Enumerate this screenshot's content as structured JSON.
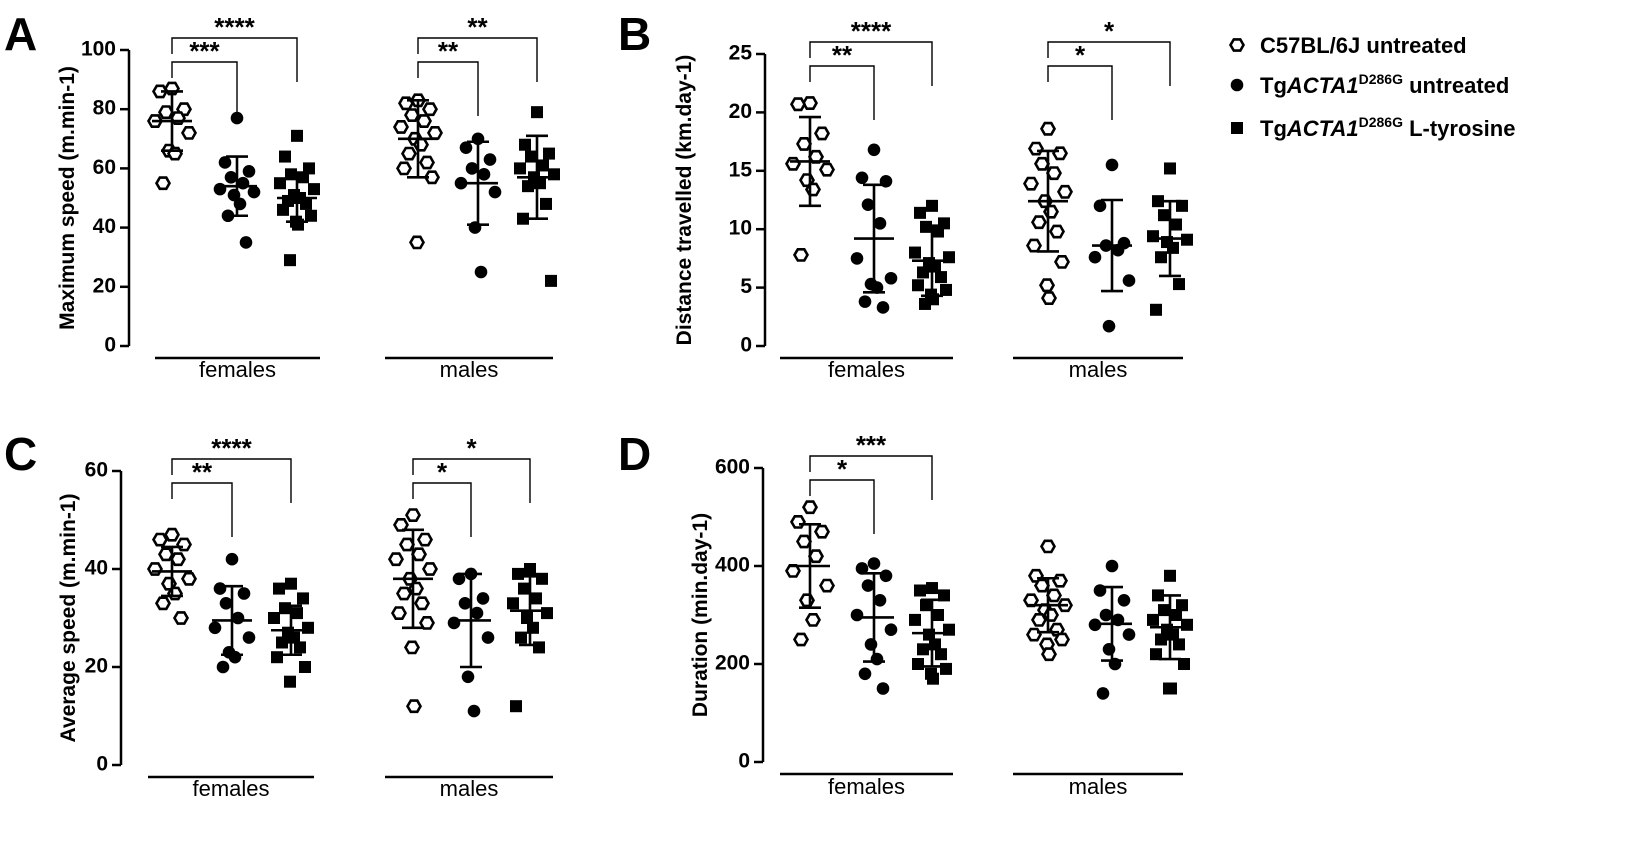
{
  "legend": [
    {
      "marker": "open-hexagon",
      "prefix": "C57BL/6J untreated",
      "italic": "",
      "sup": "",
      "suffix": ""
    },
    {
      "marker": "filled-circle",
      "prefix": "Tg",
      "italic": "ACTA1",
      "sup": "D286G",
      "suffix": " untreated"
    },
    {
      "marker": "filled-square",
      "prefix": "Tg",
      "italic": "ACTA1",
      "sup": "D286G",
      "suffix": " L-tyrosine"
    }
  ],
  "chart_data": [
    {
      "panel": "A",
      "type": "scatter",
      "ylabel": "Maximum speed (m.min-1)",
      "ylim": [
        0,
        100
      ],
      "yticks": [
        0,
        20,
        40,
        60,
        80,
        100
      ],
      "groups": [
        "females",
        "males"
      ],
      "series": [
        {
          "group": "females",
          "marker": "open-hexagon",
          "mean": 76,
          "sd": 10,
          "values": [
            87,
            86,
            80,
            79,
            77,
            76,
            72,
            66,
            65,
            55
          ]
        },
        {
          "group": "females",
          "marker": "filled-circle",
          "mean": 54,
          "sd": 10,
          "values": [
            77,
            62,
            59,
            57,
            55,
            53,
            52,
            51,
            48,
            44,
            35
          ]
        },
        {
          "group": "females",
          "marker": "filled-square",
          "mean": 50,
          "sd": 8,
          "values": [
            71,
            64,
            60,
            58,
            57,
            55,
            53,
            51,
            50,
            49,
            48,
            46,
            44,
            42,
            41,
            29
          ]
        },
        {
          "group": "males",
          "marker": "open-hexagon",
          "mean": 70,
          "sd": 13,
          "values": [
            83,
            82,
            80,
            78,
            76,
            74,
            72,
            70,
            68,
            65,
            62,
            60,
            57,
            35
          ]
        },
        {
          "group": "males",
          "marker": "filled-circle",
          "mean": 55,
          "sd": 14,
          "values": [
            70,
            67,
            63,
            60,
            58,
            55,
            52,
            40,
            25
          ]
        },
        {
          "group": "males",
          "marker": "filled-square",
          "mean": 57,
          "sd": 14,
          "values": [
            79,
            68,
            65,
            64,
            61,
            60,
            58,
            57,
            55,
            54,
            48,
            43,
            22
          ]
        }
      ],
      "significance": [
        {
          "group": "females",
          "from": 0,
          "to": 1,
          "label": "***"
        },
        {
          "group": "females",
          "from": 0,
          "to": 2,
          "label": "****"
        },
        {
          "group": "males",
          "from": 0,
          "to": 1,
          "label": "**"
        },
        {
          "group": "males",
          "from": 0,
          "to": 2,
          "label": "**"
        }
      ]
    },
    {
      "panel": "B",
      "type": "scatter",
      "ylabel": "Distance travelled (km.day-1)",
      "ylim": [
        0,
        25
      ],
      "yticks": [
        0,
        5,
        10,
        15,
        20,
        25
      ],
      "groups": [
        "females",
        "males"
      ],
      "series": [
        {
          "group": "females",
          "marker": "open-hexagon",
          "mean": 15.8,
          "sd": 3.8,
          "values": [
            20.8,
            20.7,
            18.2,
            17.3,
            16.2,
            15.6,
            15.1,
            14.2,
            13.4,
            7.8
          ]
        },
        {
          "group": "females",
          "marker": "filled-circle",
          "mean": 9.2,
          "sd": 4.6,
          "values": [
            16.8,
            14.4,
            14.1,
            12.1,
            10.5,
            7.5,
            5.8,
            5.3,
            5.0,
            3.8,
            3.3
          ]
        },
        {
          "group": "females",
          "marker": "filled-square",
          "mean": 7.3,
          "sd": 3.0,
          "values": [
            12.0,
            11.4,
            10.5,
            10.2,
            9.8,
            8.0,
            7.6,
            7.1,
            6.8,
            6.3,
            5.9,
            5.2,
            4.8,
            4.4,
            4.0,
            3.6
          ]
        },
        {
          "group": "males",
          "marker": "open-hexagon",
          "mean": 12.4,
          "sd": 4.3,
          "values": [
            18.6,
            16.9,
            16.5,
            15.6,
            14.8,
            13.9,
            13.2,
            12.4,
            11.5,
            10.6,
            9.8,
            8.6,
            7.2,
            5.2,
            4.1
          ]
        },
        {
          "group": "males",
          "marker": "filled-circle",
          "mean": 8.6,
          "sd": 3.9,
          "values": [
            15.5,
            12.0,
            8.8,
            8.6,
            8.2,
            7.6,
            5.6,
            1.7
          ]
        },
        {
          "group": "males",
          "marker": "filled-square",
          "mean": 9.2,
          "sd": 3.2,
          "values": [
            15.2,
            12.4,
            12.0,
            11.2,
            10.4,
            9.4,
            9.1,
            8.9,
            8.4,
            7.6,
            5.3,
            3.1
          ]
        }
      ],
      "significance": [
        {
          "group": "females",
          "from": 0,
          "to": 1,
          "label": "**"
        },
        {
          "group": "females",
          "from": 0,
          "to": 2,
          "label": "****"
        },
        {
          "group": "males",
          "from": 0,
          "to": 1,
          "label": "*"
        },
        {
          "group": "males",
          "from": 0,
          "to": 2,
          "label": "*"
        }
      ]
    },
    {
      "panel": "C",
      "type": "scatter",
      "ylabel": "Average speed (m.min-1)",
      "ylim": [
        0,
        60
      ],
      "yticks": [
        0,
        20,
        40,
        60
      ],
      "groups": [
        "females",
        "males"
      ],
      "series": [
        {
          "group": "females",
          "marker": "open-hexagon",
          "mean": 39.5,
          "sd": 5,
          "values": [
            47,
            46,
            45,
            43,
            42,
            40,
            38,
            37,
            35,
            33,
            30
          ]
        },
        {
          "group": "females",
          "marker": "filled-circle",
          "mean": 29.5,
          "sd": 7,
          "values": [
            42,
            36,
            35,
            33,
            30,
            28,
            26,
            23,
            22,
            20
          ]
        },
        {
          "group": "females",
          "marker": "filled-square",
          "mean": 27.5,
          "sd": 5,
          "values": [
            37,
            36,
            34,
            32,
            31,
            30,
            28,
            27,
            26,
            25,
            24,
            22,
            20,
            17
          ]
        },
        {
          "group": "males",
          "marker": "open-hexagon",
          "mean": 38,
          "sd": 10,
          "values": [
            51,
            49,
            46,
            45,
            43,
            42,
            40,
            38,
            36,
            35,
            33,
            31,
            29,
            24,
            12
          ]
        },
        {
          "group": "males",
          "marker": "filled-circle",
          "mean": 29.5,
          "sd": 9.5,
          "values": [
            39,
            38,
            34,
            33,
            31,
            29,
            26,
            18,
            11
          ]
        },
        {
          "group": "males",
          "marker": "filled-square",
          "mean": 31.5,
          "sd": 7,
          "values": [
            40,
            39,
            38,
            36,
            34,
            33,
            31,
            30,
            28,
            26,
            24,
            12
          ]
        }
      ],
      "significance": [
        {
          "group": "females",
          "from": 0,
          "to": 1,
          "label": "**"
        },
        {
          "group": "females",
          "from": 0,
          "to": 2,
          "label": "****"
        },
        {
          "group": "males",
          "from": 0,
          "to": 1,
          "label": "*"
        },
        {
          "group": "males",
          "from": 0,
          "to": 2,
          "label": "*"
        }
      ]
    },
    {
      "panel": "D",
      "type": "scatter",
      "ylabel": "Duration (min.day-1)",
      "ylim": [
        0,
        600
      ],
      "yticks": [
        0,
        200,
        400,
        600
      ],
      "groups": [
        "females",
        "males"
      ],
      "series": [
        {
          "group": "females",
          "marker": "open-hexagon",
          "mean": 400,
          "sd": 85,
          "values": [
            520,
            490,
            470,
            450,
            420,
            390,
            360,
            330,
            290,
            250
          ]
        },
        {
          "group": "females",
          "marker": "filled-circle",
          "mean": 295,
          "sd": 90,
          "values": [
            405,
            395,
            380,
            360,
            330,
            300,
            270,
            240,
            210,
            180,
            150
          ]
        },
        {
          "group": "females",
          "marker": "filled-square",
          "mean": 263,
          "sd": 68,
          "values": [
            355,
            350,
            340,
            320,
            300,
            290,
            270,
            260,
            240,
            230,
            220,
            200,
            190,
            180,
            170
          ]
        },
        {
          "group": "males",
          "marker": "open-hexagon",
          "mean": 320,
          "sd": 55,
          "values": [
            440,
            380,
            370,
            360,
            340,
            330,
            320,
            310,
            300,
            290,
            270,
            260,
            250,
            240,
            220
          ]
        },
        {
          "group": "males",
          "marker": "filled-circle",
          "mean": 282,
          "sd": 75,
          "values": [
            400,
            350,
            330,
            300,
            290,
            280,
            260,
            230,
            200,
            140
          ]
        },
        {
          "group": "males",
          "marker": "filled-square",
          "mean": 275,
          "sd": 65,
          "values": [
            380,
            340,
            320,
            310,
            300,
            290,
            280,
            270,
            260,
            250,
            240,
            220,
            200,
            150,
            150
          ]
        }
      ],
      "significance": [
        {
          "group": "females",
          "from": 0,
          "to": 1,
          "label": "*"
        },
        {
          "group": "females",
          "from": 0,
          "to": 2,
          "label": "***"
        }
      ]
    }
  ]
}
